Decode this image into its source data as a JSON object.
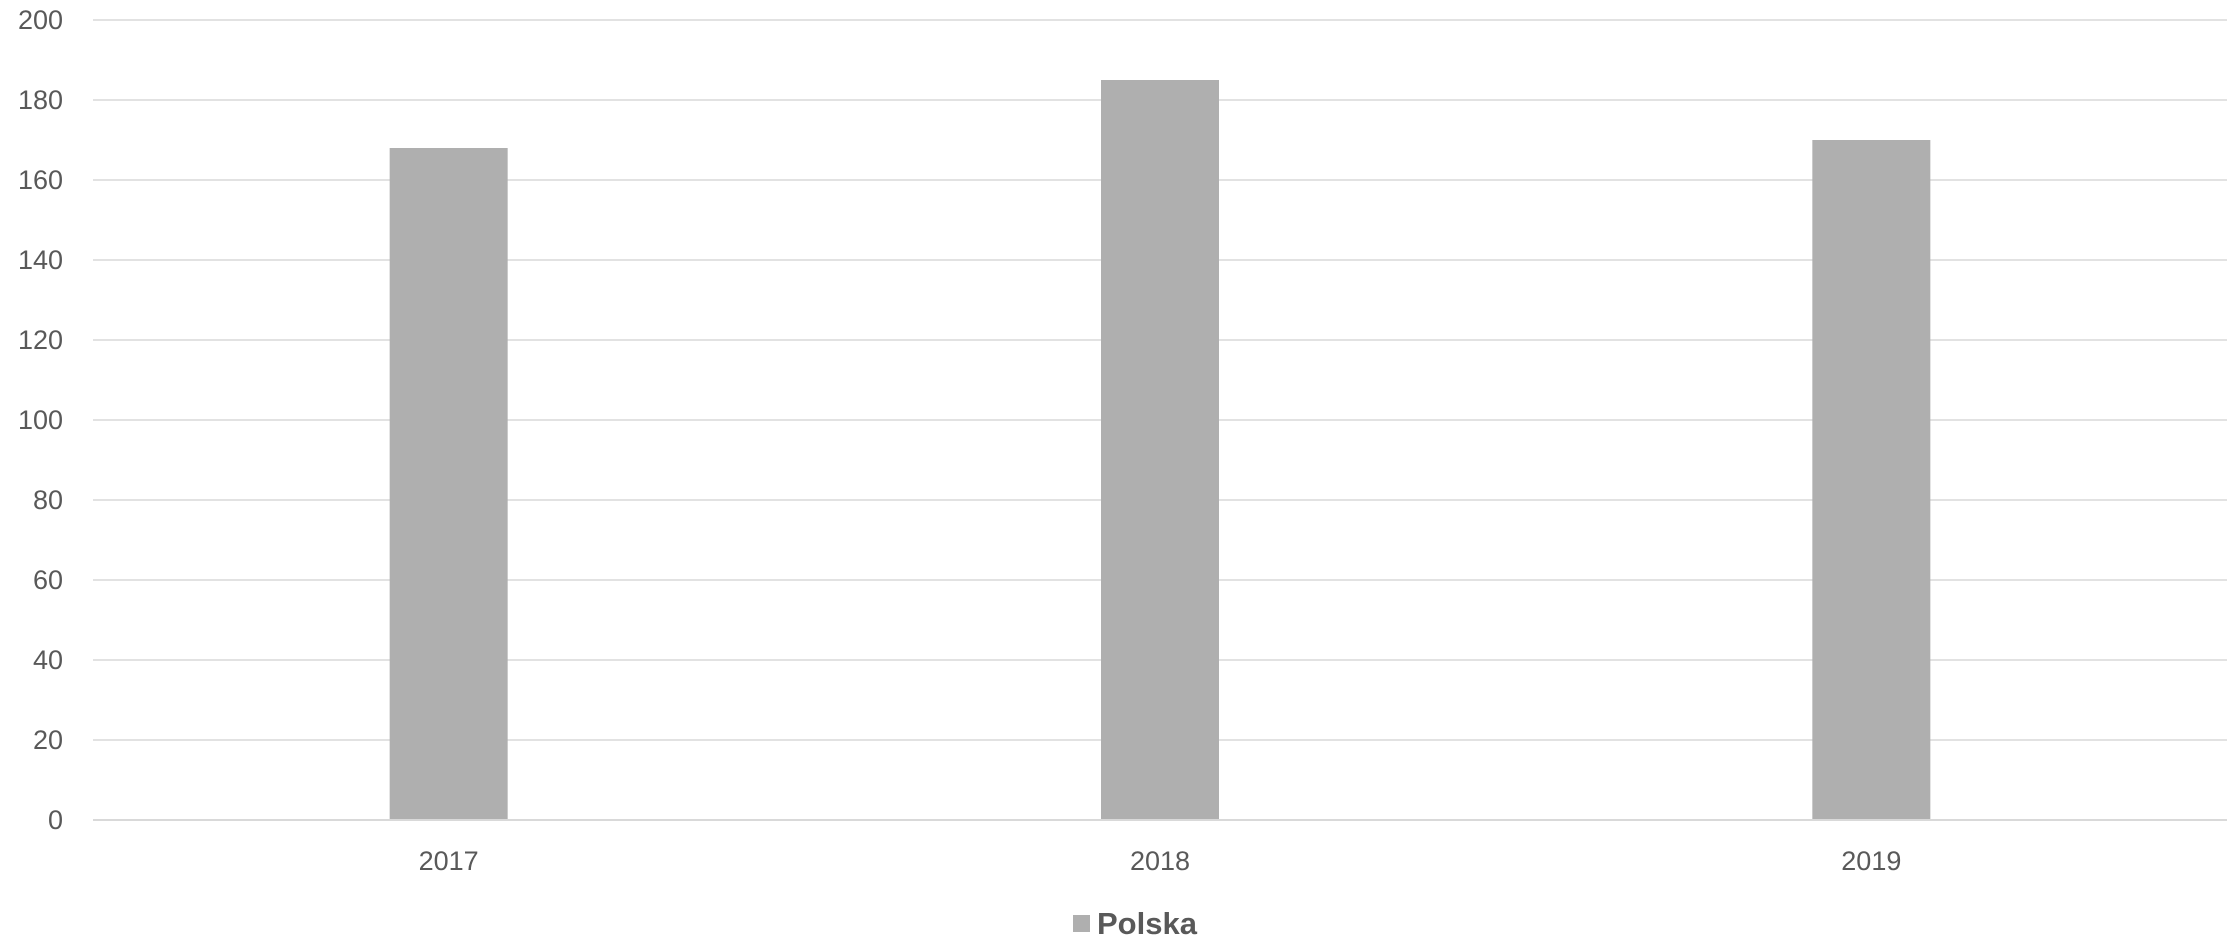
{
  "chart_data": {
    "type": "bar",
    "categories": [
      "2017",
      "2018",
      "2019"
    ],
    "series": [
      {
        "name": "Polska",
        "values": [
          168,
          185,
          170
        ],
        "color": "#afafaf"
      }
    ],
    "ylim": [
      0,
      200
    ],
    "yticks": [
      "0",
      "20",
      "40",
      "60",
      "80",
      "100",
      "120",
      "140",
      "160",
      "180",
      "200"
    ],
    "grid": true,
    "gridline_color": "#d9d9d9",
    "text_color": "#595959",
    "legend": "bottom-center",
    "title": "",
    "xlabel": "",
    "ylabel": ""
  }
}
